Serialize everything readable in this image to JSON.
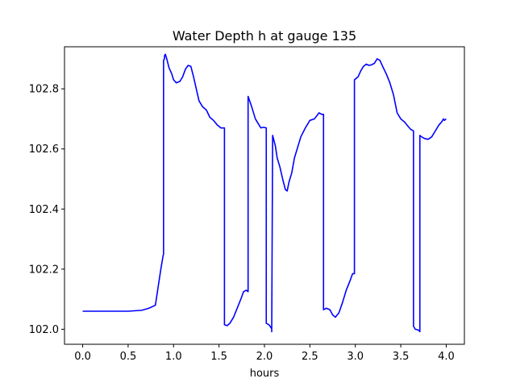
{
  "chart_data": {
    "type": "line",
    "title": "Water Depth h at gauge 135",
    "xlabel": "hours",
    "ylabel": "",
    "xlim": [
      -0.2,
      4.2
    ],
    "ylim": [
      101.95,
      102.94
    ],
    "xticks": [
      0.0,
      0.5,
      1.0,
      1.5,
      2.0,
      2.5,
      3.0,
      3.5,
      4.0
    ],
    "xtick_labels": [
      "0.0",
      "0.5",
      "1.0",
      "1.5",
      "2.0",
      "2.5",
      "3.0",
      "3.5",
      "4.0"
    ],
    "yticks": [
      102.0,
      102.2,
      102.4,
      102.6,
      102.8
    ],
    "ytick_labels": [
      "102.0",
      "102.2",
      "102.4",
      "102.6",
      "102.8"
    ],
    "grid": false,
    "series": [
      {
        "color": "#0000ff",
        "x": [
          0.0,
          0.3,
          0.5,
          0.65,
          0.73,
          0.8,
          0.83,
          0.86,
          0.885,
          0.89,
          0.89,
          0.9,
          0.9,
          0.91,
          0.925,
          0.95,
          0.98,
          1.0,
          1.03,
          1.07,
          1.1,
          1.13,
          1.16,
          1.19,
          1.22,
          1.25,
          1.28,
          1.32,
          1.36,
          1.4,
          1.44,
          1.48,
          1.52,
          1.56,
          1.56,
          1.59,
          1.62,
          1.66,
          1.7,
          1.74,
          1.77,
          1.8,
          1.82,
          1.82,
          1.86,
          1.9,
          1.93,
          1.96,
          1.99,
          2.02,
          2.02,
          2.05,
          2.08,
          2.08,
          2.09,
          2.12,
          2.14,
          2.17,
          2.2,
          2.23,
          2.25,
          2.27,
          2.3,
          2.33,
          2.36,
          2.4,
          2.45,
          2.5,
          2.55,
          2.6,
          2.63,
          2.65,
          2.65,
          2.68,
          2.72,
          2.75,
          2.78,
          2.82,
          2.86,
          2.9,
          2.94,
          2.97,
          2.99,
          2.99,
          3.03,
          3.06,
          3.09,
          3.12,
          3.15,
          3.18,
          3.21,
          3.24,
          3.27,
          3.3,
          3.34,
          3.38,
          3.42,
          3.46,
          3.5,
          3.54,
          3.58,
          3.61,
          3.64,
          3.64,
          3.66,
          3.69,
          3.71,
          3.71,
          3.73,
          3.76,
          3.8,
          3.84,
          3.88,
          3.92,
          3.95,
          3.97,
          3.98,
          4.0
        ],
        "y": [
          102.06,
          102.06,
          102.06,
          102.063,
          102.07,
          102.08,
          102.14,
          102.2,
          102.245,
          102.25,
          102.895,
          102.9,
          102.91,
          102.915,
          102.9,
          102.87,
          102.85,
          102.83,
          102.82,
          102.825,
          102.84,
          102.865,
          102.878,
          102.875,
          102.84,
          102.8,
          102.76,
          102.74,
          102.73,
          102.705,
          102.695,
          102.68,
          102.67,
          102.67,
          102.015,
          102.012,
          102.02,
          102.04,
          102.07,
          102.1,
          102.125,
          102.13,
          102.125,
          102.775,
          102.74,
          102.7,
          102.685,
          102.67,
          102.672,
          102.67,
          102.02,
          102.015,
          102.002,
          101.992,
          102.645,
          102.61,
          102.57,
          102.54,
          102.5,
          102.465,
          102.46,
          102.49,
          102.52,
          102.57,
          102.6,
          102.64,
          102.67,
          102.695,
          102.7,
          102.72,
          102.715,
          102.715,
          102.065,
          102.07,
          102.065,
          102.048,
          102.04,
          102.055,
          102.09,
          102.13,
          102.16,
          102.185,
          102.185,
          102.83,
          102.84,
          102.86,
          102.875,
          102.882,
          102.878,
          102.88,
          102.885,
          102.9,
          102.895,
          102.875,
          102.85,
          102.82,
          102.78,
          102.72,
          102.7,
          102.69,
          102.675,
          102.665,
          102.66,
          102.01,
          102.0,
          101.998,
          101.992,
          102.645,
          102.64,
          102.635,
          102.632,
          102.64,
          102.66,
          102.68,
          102.69,
          102.7,
          102.695,
          102.7
        ]
      }
    ]
  }
}
